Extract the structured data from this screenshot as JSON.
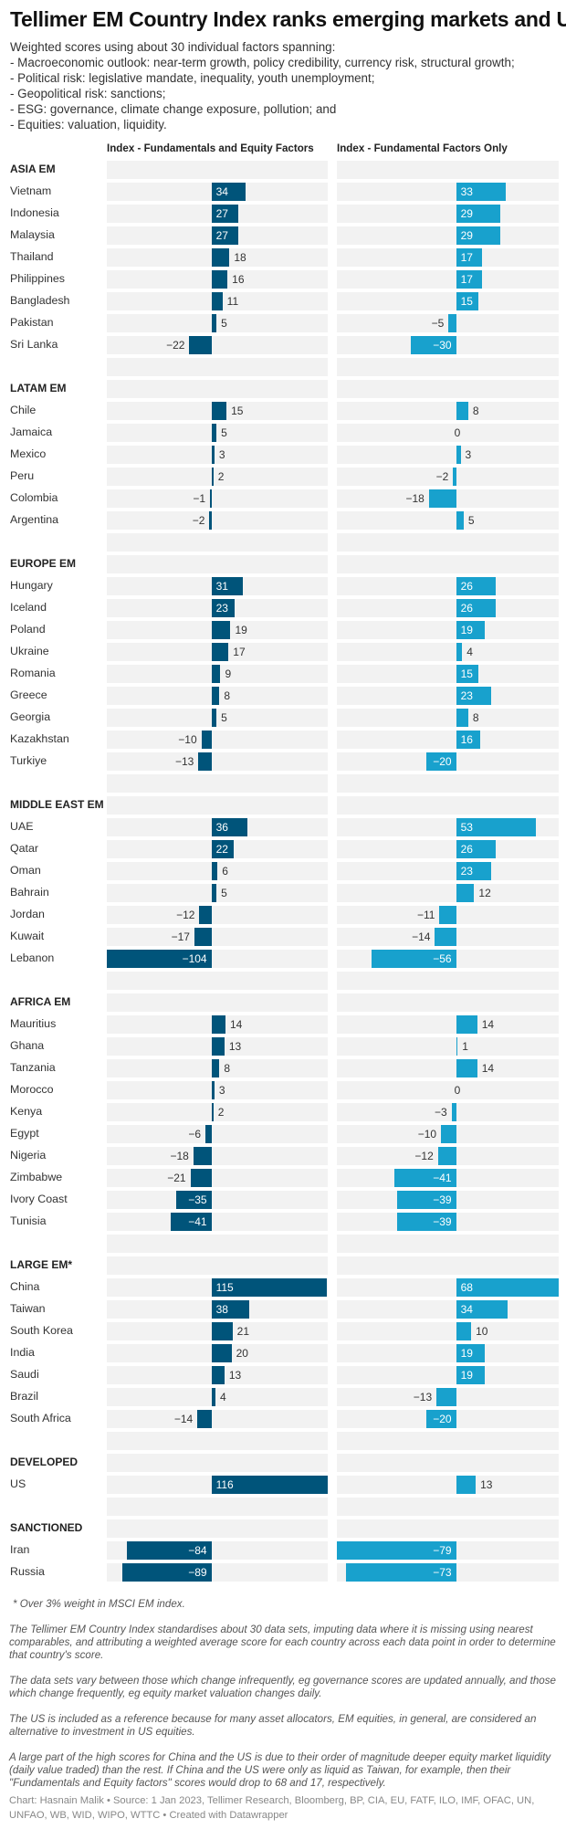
{
  "title": "Tellimer EM Country Index ranks emerging markets and US",
  "intro": [
    "Weighted scores using about 30 individual factors spanning:",
    "- Macroeconomic outlook: near-term growth, policy credibility, currency risk, structural growth;",
    "- Political risk: legislative mandate, inequality, youth unemployment;",
    "- Geopolitical risk: sanctions;",
    "- ESG: governance, climate change exposure, pollution; and",
    "- Equities: valuation, liquidity."
  ],
  "colors": {
    "equity_series": "#00547a",
    "fundamental_series": "#18a1cd",
    "track": "#f2f2f2"
  },
  "chart_data": {
    "type": "bar",
    "orientation": "horizontal",
    "series": [
      {
        "name": "Index - Fundamentals and Equity Factors"
      },
      {
        "name": "Index - Fundamental Factors Only"
      }
    ],
    "groups": [
      {
        "name": "ASIA EM",
        "rows": [
          {
            "country": "Vietnam",
            "values": [
              34,
              33
            ]
          },
          {
            "country": "Indonesia",
            "values": [
              27,
              29
            ]
          },
          {
            "country": "Malaysia",
            "values": [
              27,
              29
            ]
          },
          {
            "country": "Thailand",
            "values": [
              18,
              17
            ]
          },
          {
            "country": "Philippines",
            "values": [
              16,
              17
            ]
          },
          {
            "country": "Bangladesh",
            "values": [
              11,
              15
            ]
          },
          {
            "country": "Pakistan",
            "values": [
              5,
              -5
            ]
          },
          {
            "country": "Sri Lanka",
            "values": [
              -22,
              -30
            ]
          }
        ]
      },
      {
        "name": "LATAM EM",
        "rows": [
          {
            "country": "Chile",
            "values": [
              15,
              8
            ]
          },
          {
            "country": "Jamaica",
            "values": [
              5,
              0
            ]
          },
          {
            "country": "Mexico",
            "values": [
              3,
              3
            ]
          },
          {
            "country": "Peru",
            "values": [
              2,
              -2
            ]
          },
          {
            "country": "Colombia",
            "values": [
              -1,
              -18
            ]
          },
          {
            "country": "Argentina",
            "values": [
              -2,
              5
            ]
          }
        ]
      },
      {
        "name": "EUROPE EM",
        "rows": [
          {
            "country": "Hungary",
            "values": [
              31,
              26
            ]
          },
          {
            "country": "Iceland",
            "values": [
              23,
              26
            ]
          },
          {
            "country": "Poland",
            "values": [
              19,
              19
            ]
          },
          {
            "country": "Ukraine",
            "values": [
              17,
              4
            ]
          },
          {
            "country": "Romania",
            "values": [
              9,
              15
            ]
          },
          {
            "country": "Greece",
            "values": [
              8,
              23
            ]
          },
          {
            "country": "Georgia",
            "values": [
              5,
              8
            ]
          },
          {
            "country": "Kazakhstan",
            "values": [
              -10,
              16
            ]
          },
          {
            "country": "Turkiye",
            "values": [
              -13,
              -20
            ]
          }
        ]
      },
      {
        "name": "MIDDLE EAST EM",
        "rows": [
          {
            "country": "UAE",
            "values": [
              36,
              53
            ]
          },
          {
            "country": "Qatar",
            "values": [
              22,
              26
            ]
          },
          {
            "country": "Oman",
            "values": [
              6,
              23
            ]
          },
          {
            "country": "Bahrain",
            "values": [
              5,
              12
            ]
          },
          {
            "country": "Jordan",
            "values": [
              -12,
              -11
            ]
          },
          {
            "country": "Kuwait",
            "values": [
              -17,
              -14
            ]
          },
          {
            "country": "Lebanon",
            "values": [
              -104,
              -56
            ]
          }
        ]
      },
      {
        "name": "AFRICA EM",
        "rows": [
          {
            "country": "Mauritius",
            "values": [
              14,
              14
            ]
          },
          {
            "country": "Ghana",
            "values": [
              13,
              1
            ]
          },
          {
            "country": "Tanzania",
            "values": [
              8,
              14
            ]
          },
          {
            "country": "Morocco",
            "values": [
              3,
              0
            ]
          },
          {
            "country": "Kenya",
            "values": [
              2,
              -3
            ]
          },
          {
            "country": "Egypt",
            "values": [
              -6,
              -10
            ]
          },
          {
            "country": "Nigeria",
            "values": [
              -18,
              -12
            ]
          },
          {
            "country": "Zimbabwe",
            "values": [
              -21,
              -41
            ]
          },
          {
            "country": "Ivory Coast",
            "values": [
              -35,
              -39
            ]
          },
          {
            "country": "Tunisia",
            "values": [
              -41,
              -39
            ]
          }
        ]
      },
      {
        "name": "LARGE EM*",
        "rows": [
          {
            "country": "China",
            "values": [
              115,
              68
            ]
          },
          {
            "country": "Taiwan",
            "values": [
              38,
              34
            ]
          },
          {
            "country": "South Korea",
            "values": [
              21,
              10
            ]
          },
          {
            "country": "India",
            "values": [
              20,
              19
            ]
          },
          {
            "country": "Saudi",
            "values": [
              13,
              19
            ]
          },
          {
            "country": "Brazil",
            "values": [
              4,
              -13
            ]
          },
          {
            "country": "South Africa",
            "values": [
              -14,
              -20
            ]
          }
        ]
      },
      {
        "name": "DEVELOPED",
        "rows": [
          {
            "country": "US",
            "values": [
              116,
              13
            ]
          }
        ]
      },
      {
        "name": "SANCTIONED",
        "rows": [
          {
            "country": "Iran",
            "values": [
              -84,
              -79
            ]
          },
          {
            "country": "Russia",
            "values": [
              -89,
              -73
            ]
          }
        ]
      }
    ],
    "xlim": [
      [
        -104,
        116
      ],
      [
        -79,
        68
      ]
    ]
  },
  "notes": {
    "footnote": "* Over 3% weight in MSCI EM index.",
    "paragraphs": [
      "The Tellimer EM Country Index standardises about 30 data sets, imputing data where it is missing using nearest comparables, and attributing a weighted average score for each country across each data point in order to determine that country's score.",
      "The data sets vary between those which change infrequently, eg governance scores are updated annually, and those which change frequently, eg equity market valuation changes daily.",
      "The US is included as a reference because for many asset allocators, EM equities, in general, are considered an alternative to investment in US equities.",
      "A large part of the high scores for China and the US is due to their order of magnitude deeper equity market liquidity (daily value traded) than the rest. If China and the US were only as liquid as Taiwan, for example, then their \"Fundamentals and Equity factors\" scores would drop to 68 and 17, respectively."
    ],
    "credit": "Chart: Hasnain Malik • Source: 1 Jan 2023, Tellimer Research, Bloomberg, BP, CIA, EU, FATF, ILO, IMF, OFAC, UN, UNFAO, WB, WID, WIPO, WTTC • Created with Datawrapper"
  }
}
